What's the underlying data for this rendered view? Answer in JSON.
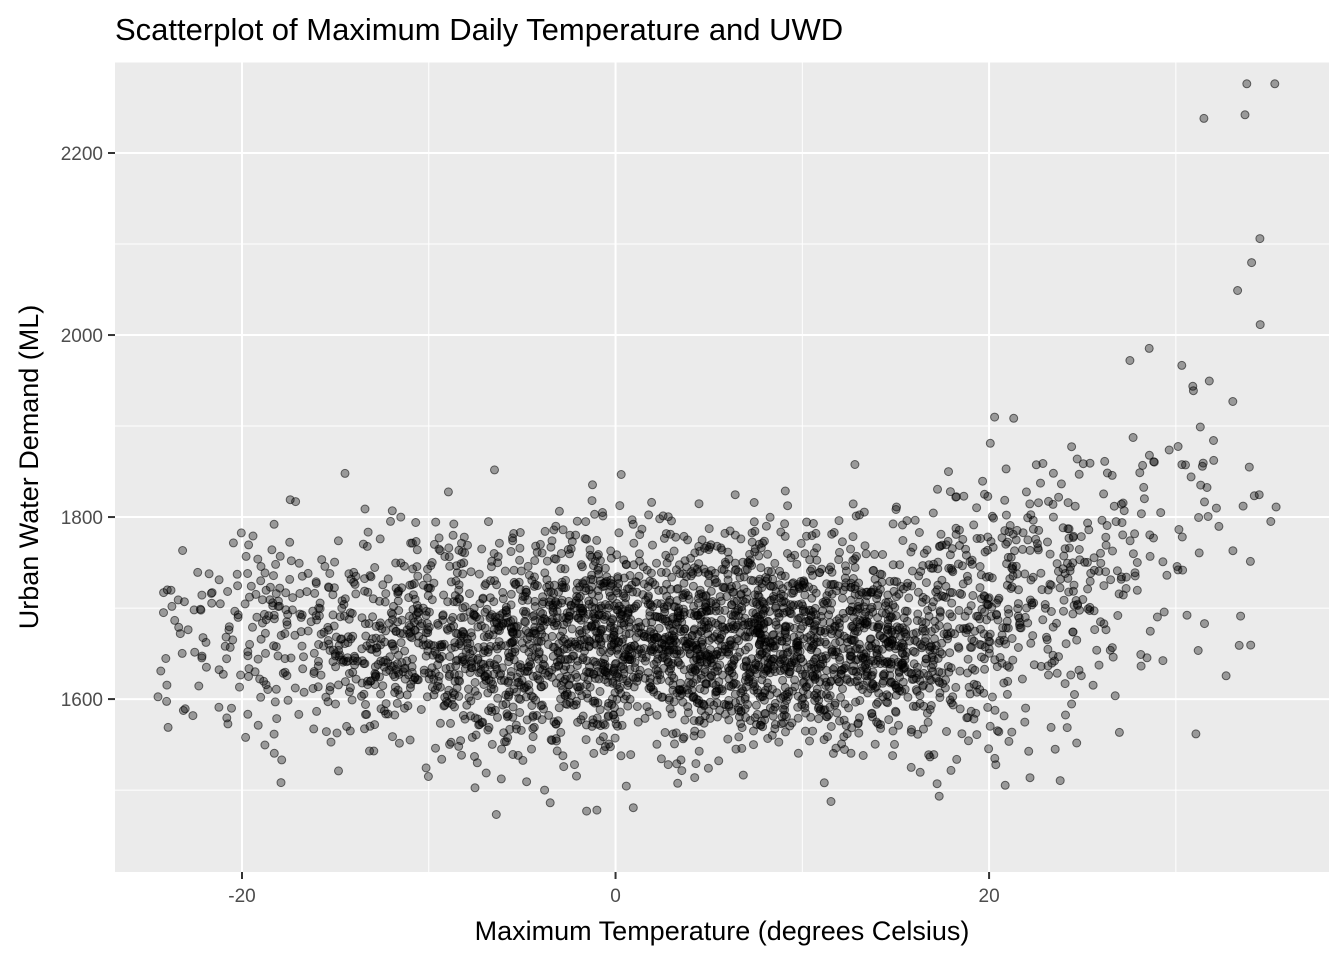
{
  "chart_data": {
    "type": "scatter",
    "title": "Scatterplot of Maximum Daily Temperature and UWD",
    "xlabel": "Maximum Temperature (degrees Celsius)",
    "ylabel": "Urban Water Demand (ML)",
    "xlim": [
      -26.8,
      38.2
    ],
    "ylim": [
      1410,
      2300
    ],
    "x_ticks": [
      -20,
      0,
      20
    ],
    "x_tick_labels": [
      "-20",
      "0",
      "20"
    ],
    "y_ticks": [
      1600,
      1800,
      2000,
      2200
    ],
    "y_tick_labels": [
      "1600",
      "1800",
      "2000",
      "2200"
    ],
    "grid": true,
    "legend": "none",
    "point_color": "#000000",
    "point_alpha": 0.35,
    "n_points_approx": 3600,
    "points": [
      [
        -24.2,
        1717
      ],
      [
        -24.0,
        1720
      ],
      [
        -21.6,
        1717
      ],
      [
        -20.9,
        1658
      ],
      [
        -20.7,
        1676
      ],
      [
        -20.5,
        1665
      ],
      [
        -19.7,
        1738
      ],
      [
        -19.6,
        1712
      ],
      [
        -19.5,
        1724
      ],
      [
        -19.3,
        1630
      ],
      [
        -19.2,
        1690
      ],
      [
        -19.0,
        1730
      ],
      [
        -18.8,
        1693
      ],
      [
        -18.4,
        1764
      ],
      [
        -18.2,
        1748
      ],
      [
        -18.0,
        1702
      ],
      [
        -17.9,
        1670
      ],
      [
        -17.6,
        1685
      ],
      [
        -17.3,
        1698
      ],
      [
        -16.9,
        1716
      ],
      [
        -16.3,
        1685
      ],
      [
        -15.9,
        1660
      ],
      [
        -15.3,
        1738
      ],
      [
        -15.0,
        1650
      ],
      [
        -14.4,
        1570
      ],
      [
        -14.2,
        1565
      ],
      [
        -13.9,
        1735
      ],
      [
        -13.6,
        1603
      ],
      [
        -13.2,
        1683
      ],
      [
        -12.9,
        1572
      ],
      [
        -12.6,
        1776
      ],
      [
        -12.2,
        1640
      ],
      [
        -11.9,
        1627
      ],
      [
        -11.5,
        1800
      ],
      [
        -11.3,
        1590
      ],
      [
        -11.0,
        1555
      ],
      [
        -10.7,
        1794
      ],
      [
        -10.3,
        1700
      ],
      [
        -10.0,
        1722
      ],
      [
        -9.7,
        1770
      ],
      [
        -9.3,
        1660
      ],
      [
        -9.0,
        1604
      ],
      [
        -8.7,
        1780
      ],
      [
        -8.4,
        1548
      ],
      [
        -8.1,
        1778
      ],
      [
        -7.8,
        1650
      ],
      [
        -7.4,
        1530
      ],
      [
        -7.1,
        1710
      ],
      [
        -6.8,
        1795
      ],
      [
        -6.5,
        1760
      ],
      [
        -6.1,
        1545
      ],
      [
        -5.8,
        1690
      ],
      [
        -5.5,
        1580
      ],
      [
        -5.1,
        1783
      ],
      [
        -4.8,
        1720
      ],
      [
        -4.5,
        1545
      ],
      [
        -4.1,
        1650
      ],
      [
        -3.8,
        1500
      ],
      [
        -3.5,
        1486
      ],
      [
        -3.2,
        1790
      ],
      [
        -2.9,
        1760
      ],
      [
        -2.6,
        1625
      ],
      [
        -2.2,
        1528
      ],
      [
        -1.9,
        1700
      ],
      [
        -1.6,
        1795
      ],
      [
        -1.3,
        1680
      ],
      [
        -1.0,
        1478
      ],
      [
        -0.7,
        1805
      ],
      [
        -0.4,
        1592
      ],
      [
        -0.1,
        1660
      ]
    ]
  }
}
